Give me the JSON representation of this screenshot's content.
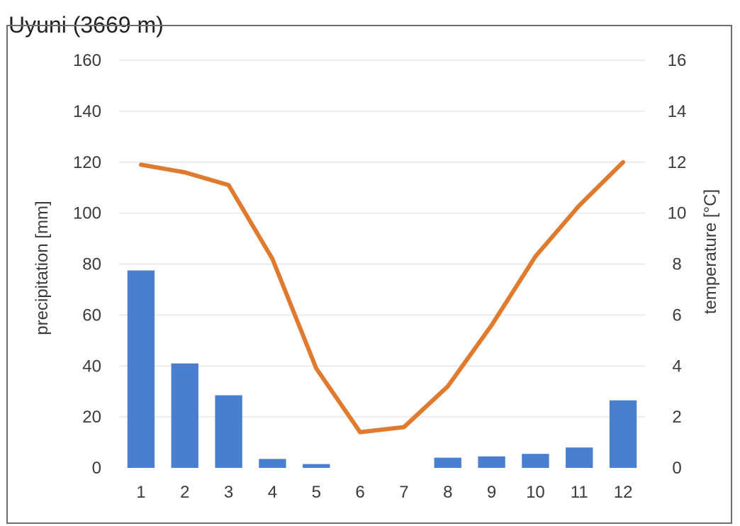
{
  "chart_data": {
    "type": "bar+line",
    "title": "Uyuni (3669 m)",
    "categories": [
      "1",
      "2",
      "3",
      "4",
      "5",
      "6",
      "7",
      "8",
      "9",
      "10",
      "11",
      "12"
    ],
    "series": [
      {
        "type": "bar",
        "axis": "left",
        "color": "#4a7fd0",
        "values": [
          77.5,
          41,
          28.5,
          3.5,
          1.5,
          0,
          0,
          4,
          4.5,
          5.5,
          8,
          26.5
        ]
      },
      {
        "type": "line",
        "axis": "right",
        "color": "#e07a2f",
        "values": [
          11.9,
          11.6,
          11.1,
          8.2,
          3.9,
          1.4,
          1.6,
          3.2,
          5.6,
          8.3,
          10.3,
          12.0
        ]
      }
    ],
    "y_left": {
      "label": "precipitation [mm]",
      "range": [
        0,
        160
      ],
      "ticks": [
        0,
        20,
        40,
        60,
        80,
        100,
        120,
        140,
        160
      ]
    },
    "y_right": {
      "label": "temperature [°C]",
      "range": [
        0,
        16
      ],
      "ticks": [
        0,
        2,
        4,
        6,
        8,
        10,
        12,
        14,
        16
      ]
    },
    "grid": true,
    "legend": "none"
  }
}
